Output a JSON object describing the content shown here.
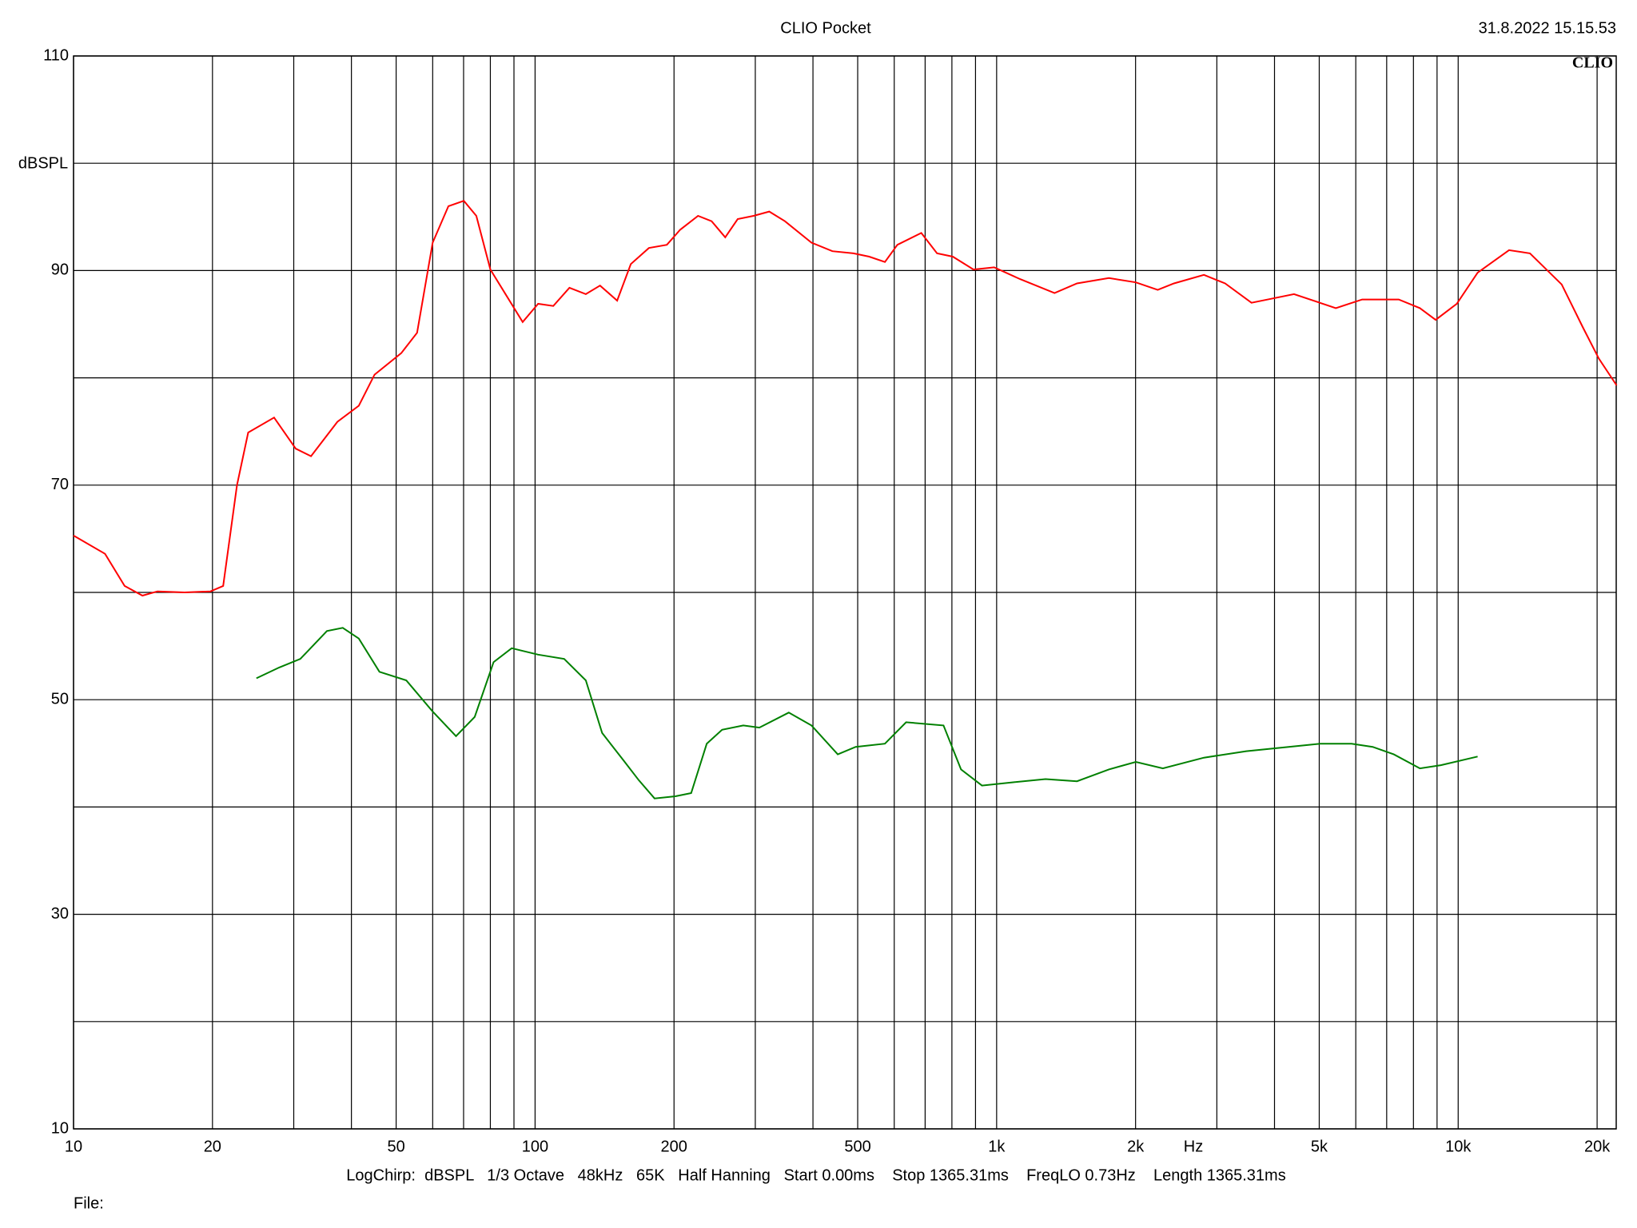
{
  "chart_data": {
    "type": "line",
    "title": "CLIO Pocket",
    "timestamp": "31.8.2022 15.15.53",
    "logo": "CLIO",
    "y_label": "dBSPL",
    "x_label": "Hz",
    "footer": "LogChirp:  dBSPL   1/3 Octave   48kHz   65K   Half Hanning   Start 0.00ms    Stop 1365.31ms    FreqLO 0.73Hz    Length 1365.31ms",
    "file_label": "File:",
    "xscale": "log",
    "grid": true,
    "xlim": [
      10,
      22000
    ],
    "ylim": [
      10,
      110
    ],
    "xticks": [
      10,
      20,
      50,
      100,
      200,
      500,
      {
        "value": 1000,
        "label": "1k"
      },
      {
        "value": 2000,
        "label": "2k"
      },
      {
        "value": 5000,
        "label": "5k"
      },
      {
        "value": 10000,
        "label": "10k"
      },
      {
        "value": 20000,
        "label": "20k"
      }
    ],
    "xgrid": [
      30,
      40,
      60,
      70,
      80,
      90,
      300,
      400,
      600,
      700,
      800,
      900,
      3000,
      4000,
      6000,
      7000,
      8000,
      9000
    ],
    "yticks": [
      10,
      30,
      50,
      70,
      90,
      110
    ],
    "ygrid": [
      20,
      40,
      60,
      80,
      100
    ],
    "series": [
      {
        "color": "#ff0000",
        "x": [
          10,
          11.7,
          12.9,
          14.1,
          15.2,
          17.4,
          19.8,
          21.1,
          22.6,
          23.9,
          27.2,
          30.3,
          32.7,
          37.3,
          41.5,
          44.9,
          51.3,
          55.5,
          60,
          64.9,
          70.1,
          74.6,
          80,
          86.6,
          94,
          101.5,
          109.5,
          118.7,
          128.8,
          138.3,
          150.6,
          161.2,
          176.4,
          193,
          206.2,
          225.5,
          241.3,
          258.2,
          274.8,
          297.4,
          321.6,
          347.8,
          397,
          440.7,
          489.6,
          529.5,
          572.8,
          609.6,
          686.8,
          742.8,
          803.4,
          890.9,
          987.4,
          1124,
          1335,
          1493,
          1751,
          2003,
          2234,
          2422,
          2813,
          3126,
          3566,
          3965,
          4408,
          5431,
          6195,
          7434,
          8262,
          8937,
          9930,
          11020,
          12890,
          14310,
          16760,
          18630,
          20170,
          22040
        ],
        "values": [
          65.3,
          63.6,
          60.6,
          59.7,
          60.1,
          60.0,
          60.1,
          60.6,
          70.0,
          74.9,
          76.3,
          73.4,
          72.7,
          75.9,
          77.4,
          80.3,
          82.3,
          84.2,
          92.6,
          96.0,
          96.5,
          95.1,
          90.1,
          87.7,
          85.2,
          86.9,
          86.7,
          88.4,
          87.8,
          88.6,
          87.2,
          90.6,
          92.1,
          92.4,
          93.8,
          95.1,
          94.6,
          93.1,
          94.8,
          95.1,
          95.5,
          94.6,
          92.6,
          91.8,
          91.6,
          91.3,
          90.8,
          92.4,
          93.5,
          91.6,
          91.3,
          90.1,
          90.3,
          89.2,
          87.9,
          88.8,
          89.3,
          88.9,
          88.2,
          88.8,
          89.6,
          88.8,
          87.0,
          87.4,
          87.8,
          86.5,
          87.3,
          87.3,
          86.5,
          85.4,
          86.9,
          89.8,
          91.9,
          91.6,
          88.7,
          84.7,
          81.8,
          79.3
        ]
      },
      {
        "color": "#008000",
        "x": [
          24.9,
          27.9,
          31,
          35.4,
          38.3,
          41.5,
          46,
          52.6,
          60,
          67.4,
          74,
          81.3,
          89,
          101.5,
          115.6,
          128.8,
          139.7,
          155.1,
          167.7,
          181.5,
          201.4,
          217.9,
          235.5,
          254.2,
          282.6,
          306.1,
          354.5,
          397,
          452.6,
          495,
          572.8,
          636.5,
          767.1,
          837.1,
          929.4,
          1086,
          1276,
          1493,
          1751,
          2003,
          2292,
          2813,
          3473,
          4292,
          5023,
          5876,
          6528,
          7255,
          8262,
          9171,
          11020
        ],
        "values": [
          52.0,
          53.0,
          53.8,
          56.4,
          56.7,
          55.7,
          52.6,
          51.8,
          48.9,
          46.6,
          48.4,
          53.5,
          54.8,
          54.2,
          53.8,
          51.8,
          46.9,
          44.4,
          42.5,
          40.8,
          41.0,
          41.3,
          45.9,
          47.2,
          47.6,
          47.4,
          48.8,
          47.6,
          44.9,
          45.6,
          45.9,
          47.9,
          47.6,
          43.5,
          42.0,
          42.3,
          42.6,
          42.4,
          43.5,
          44.2,
          43.6,
          44.6,
          45.2,
          45.6,
          45.9,
          45.9,
          45.6,
          44.9,
          43.6,
          43.9,
          44.7
        ]
      }
    ]
  }
}
